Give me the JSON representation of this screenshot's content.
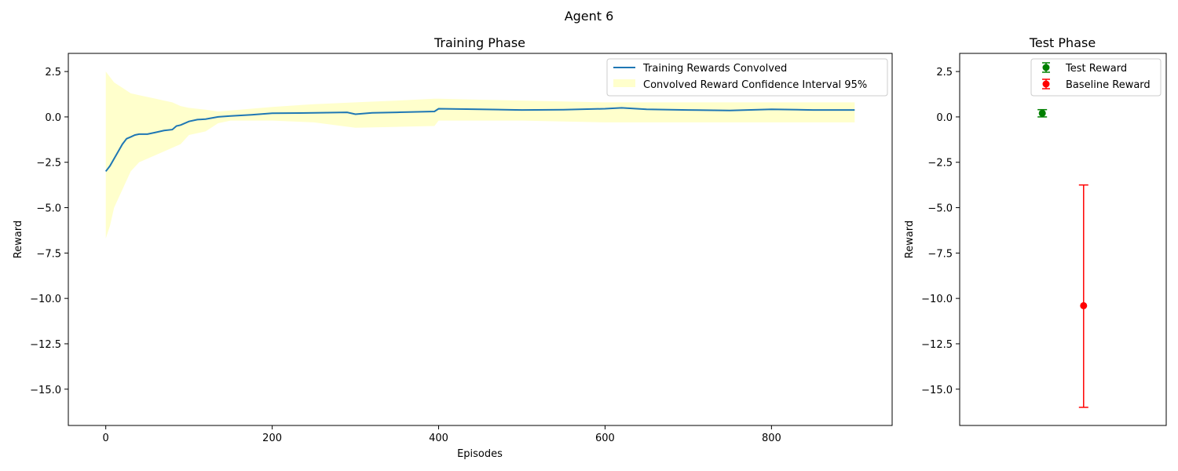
{
  "figure": {
    "title": "Agent 6"
  },
  "chart_data": [
    {
      "type": "line",
      "title": "Training Phase",
      "xlabel": "Episodes",
      "ylabel": "Reward",
      "xlim": [
        -45,
        945
      ],
      "ylim": [
        -17.0,
        3.5
      ],
      "xticks": [
        0,
        200,
        400,
        600,
        800
      ],
      "yticks": [
        2.5,
        0.0,
        -2.5,
        -5.0,
        -7.5,
        -10.0,
        -12.5,
        -15.0
      ],
      "grid": false,
      "legend_position": "top-right",
      "series": [
        {
          "name": "Training Rewards Convolved",
          "color": "#1f77b4",
          "x": [
            0,
            5,
            10,
            15,
            20,
            25,
            30,
            35,
            40,
            50,
            60,
            70,
            80,
            85,
            90,
            100,
            110,
            120,
            135,
            150,
            175,
            200,
            250,
            290,
            300,
            320,
            350,
            395,
            400,
            450,
            500,
            550,
            600,
            620,
            650,
            700,
            750,
            800,
            850,
            900
          ],
          "y": [
            -3.0,
            -2.7,
            -2.3,
            -1.9,
            -1.5,
            -1.2,
            -1.1,
            -1.0,
            -0.95,
            -0.95,
            -0.85,
            -0.75,
            -0.7,
            -0.5,
            -0.45,
            -0.25,
            -0.15,
            -0.12,
            0.0,
            0.05,
            0.12,
            0.2,
            0.22,
            0.25,
            0.15,
            0.22,
            0.25,
            0.3,
            0.45,
            0.42,
            0.38,
            0.4,
            0.45,
            0.5,
            0.42,
            0.38,
            0.35,
            0.42,
            0.38,
            0.38
          ]
        },
        {
          "name": "Convolved Reward Confidence Interval 95%",
          "color": "#ffffcc",
          "type": "area",
          "x": [
            0,
            5,
            10,
            20,
            30,
            40,
            50,
            60,
            70,
            80,
            90,
            100,
            120,
            135,
            150,
            200,
            250,
            300,
            350,
            395,
            400,
            450,
            500,
            550,
            600,
            650,
            700,
            750,
            800,
            850,
            900
          ],
          "upper": [
            2.5,
            2.2,
            1.9,
            1.6,
            1.3,
            1.2,
            1.1,
            1.0,
            0.9,
            0.8,
            0.6,
            0.5,
            0.4,
            0.3,
            0.35,
            0.55,
            0.7,
            0.8,
            0.9,
            1.0,
            1.0,
            0.95,
            0.9,
            0.85,
            0.8,
            0.8,
            0.8,
            0.8,
            0.8,
            0.8,
            0.8
          ],
          "lower": [
            -6.7,
            -6.0,
            -5.0,
            -4.0,
            -3.0,
            -2.5,
            -2.3,
            -2.1,
            -1.9,
            -1.7,
            -1.5,
            -1.0,
            -0.8,
            -0.35,
            -0.2,
            -0.2,
            -0.3,
            -0.6,
            -0.55,
            -0.5,
            -0.2,
            -0.2,
            -0.2,
            -0.25,
            -0.3,
            -0.3,
            -0.3,
            -0.3,
            -0.3,
            -0.3,
            -0.3
          ]
        }
      ]
    },
    {
      "type": "scatter",
      "title": "Test Phase",
      "ylabel": "Reward",
      "ylim": [
        -17.0,
        3.5
      ],
      "yticks": [
        2.5,
        0.0,
        -2.5,
        -5.0,
        -7.5,
        -10.0,
        -12.5,
        -15.0
      ],
      "grid": false,
      "legend_position": "top-right",
      "series": [
        {
          "name": "Test Reward",
          "color": "#008000",
          "x": 0.4,
          "y": 0.2,
          "err_low": 0.0,
          "err_high": 0.4
        },
        {
          "name": "Baseline Reward",
          "color": "#ff0000",
          "x": 0.6,
          "y": -10.4,
          "err_low": -16.0,
          "err_high": -3.75
        }
      ]
    }
  ]
}
